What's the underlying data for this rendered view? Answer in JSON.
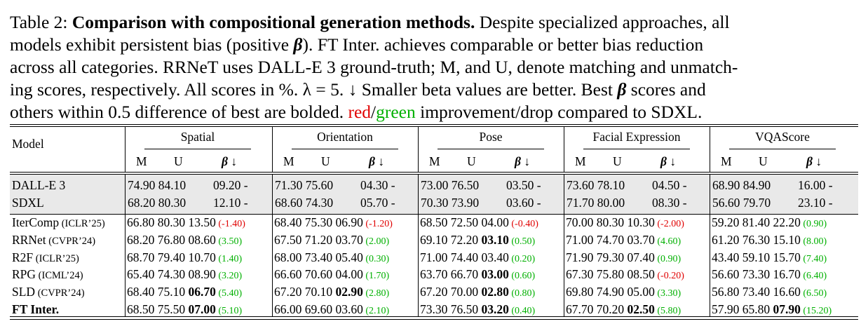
{
  "caption": {
    "label": "Table 2:",
    "title": "Comparison with compositional generation methods.",
    "line1_rest": "Despite specialized approaches, all",
    "line2": "models exhibit persistent bias (positive ",
    "line2_beta": "β",
    "line2_rest": "). FT Inter. achieves comparable or better bias reduction",
    "line3": "across all categories. RRNeT uses DALL-E 3 ground-truth; M, and U, denote matching and unmatch-",
    "line4": "ing scores, respectively. All scores in %. λ = 5. ↓ Smaller beta values are better. Best ",
    "line4_beta": "β",
    "line4_rest": " scores and",
    "line5": "others within 0.5 difference of best are bolded. ",
    "red_word": "red",
    "slash": "/",
    "green_word": "green",
    "line5_rest": " improvement/drop compared to SDXL."
  },
  "header": {
    "model_label": "Model",
    "groups": [
      "Spatial",
      "Orientation",
      "Pose",
      "Facial Expression",
      "VQAScore"
    ],
    "sub_m": "M",
    "sub_u": "U",
    "sub_beta": "β",
    "sub_arrow": "↓"
  },
  "baselines": [
    {
      "model": "DALL-E 3",
      "venue": "",
      "cells": [
        "74.90 84.10",
        "09.20 -",
        "71.30 75.60",
        "04.30 -",
        "73.00 76.50",
        "03.50 -",
        "73.60 78.10",
        "04.50 -",
        "68.90 84.90",
        "16.00 -"
      ]
    },
    {
      "model": "SDXL",
      "venue": "",
      "cells": [
        "68.20 80.30",
        "12.10 -",
        "68.60 74.30",
        "05.70 -",
        "70.30 73.90",
        "03.60 -",
        "71.70 80.00",
        "08.30 -",
        "56.60 79.70",
        "23.10 -"
      ]
    }
  ],
  "rows": [
    {
      "model": "IterComp",
      "venue": "(ICLR’25)",
      "groups": [
        {
          "mu": "66.80 80.30",
          "beta": "13.50",
          "bold": false,
          "delta": "(-1.40)",
          "dir": "red"
        },
        {
          "mu": "68.40 75.30",
          "beta": "06.90",
          "bold": false,
          "delta": "(-1.20)",
          "dir": "red"
        },
        {
          "mu": "68.50 72.50",
          "beta": "04.00",
          "bold": false,
          "delta": "(-0.40)",
          "dir": "red"
        },
        {
          "mu": "70.00 80.30",
          "beta": "10.30",
          "bold": false,
          "delta": "(-2.00)",
          "dir": "red"
        },
        {
          "mu": "59.20 81.40",
          "beta": "22.20",
          "bold": false,
          "delta": "(0.90)",
          "dir": "green"
        }
      ]
    },
    {
      "model": "RRNet",
      "venue": "(CVPR’24)",
      "groups": [
        {
          "mu": "68.20 76.80",
          "beta": "08.60",
          "bold": false,
          "delta": "(3.50)",
          "dir": "green"
        },
        {
          "mu": "67.50 71.20",
          "beta": "03.70",
          "bold": false,
          "delta": "(2.00)",
          "dir": "green"
        },
        {
          "mu": "69.10 72.20",
          "beta": "03.10",
          "bold": true,
          "delta": "(0.50)",
          "dir": "green"
        },
        {
          "mu": "71.00 74.70",
          "beta": "03.70",
          "bold": false,
          "delta": "(4.60)",
          "dir": "green"
        },
        {
          "mu": "61.20 76.30",
          "beta": "15.10",
          "bold": false,
          "delta": "(8.00)",
          "dir": "green"
        }
      ]
    },
    {
      "model": "R2F",
      "venue": "(ICLR’25)",
      "groups": [
        {
          "mu": "68.70 79.40",
          "beta": "10.70",
          "bold": false,
          "delta": "(1.40)",
          "dir": "green"
        },
        {
          "mu": "68.00 73.40",
          "beta": "05.40",
          "bold": false,
          "delta": "(0.30)",
          "dir": "green"
        },
        {
          "mu": "71.00 74.40",
          "beta": "03.40",
          "bold": false,
          "delta": "(0.20)",
          "dir": "green"
        },
        {
          "mu": "71.90 79.30",
          "beta": "07.40",
          "bold": false,
          "delta": "(0.90)",
          "dir": "green"
        },
        {
          "mu": "43.40 59.10",
          "beta": "15.70",
          "bold": false,
          "delta": "(7.40)",
          "dir": "green"
        }
      ]
    },
    {
      "model": "RPG",
      "venue": "(ICML’24)",
      "groups": [
        {
          "mu": "65.40 74.30",
          "beta": "08.90",
          "bold": false,
          "delta": "(3.20)",
          "dir": "green"
        },
        {
          "mu": "66.60 70.60",
          "beta": "04.00",
          "bold": false,
          "delta": "(1.70)",
          "dir": "green"
        },
        {
          "mu": "63.70 66.70",
          "beta": "03.00",
          "bold": true,
          "delta": "(0.60)",
          "dir": "green"
        },
        {
          "mu": "67.30 75.80",
          "beta": "08.50",
          "bold": false,
          "delta": "(-0.20)",
          "dir": "red"
        },
        {
          "mu": "56.60 73.30",
          "beta": "16.70",
          "bold": false,
          "delta": "(6.40)",
          "dir": "green"
        }
      ]
    },
    {
      "model": "SLD",
      "venue": "(CVPR’24)",
      "groups": [
        {
          "mu": "68.40 75.10",
          "beta": "06.70",
          "bold": true,
          "delta": "(5.40)",
          "dir": "green"
        },
        {
          "mu": "67.20 70.10",
          "beta": "02.90",
          "bold": true,
          "delta": "(2.80)",
          "dir": "green"
        },
        {
          "mu": "67.20 70.00",
          "beta": "02.80",
          "bold": true,
          "delta": "(0.80)",
          "dir": "green"
        },
        {
          "mu": "69.80 74.90",
          "beta": "05.00",
          "bold": false,
          "delta": "(3.30)",
          "dir": "green"
        },
        {
          "mu": "56.80 73.40",
          "beta": "16.60",
          "bold": false,
          "delta": "(6.50)",
          "dir": "green"
        }
      ]
    },
    {
      "model": "FT Inter.",
      "venue": "",
      "model_bold": true,
      "groups": [
        {
          "mu": "68.50 75.50",
          "beta": "07.00",
          "bold": true,
          "delta": "(5.10)",
          "dir": "green"
        },
        {
          "mu": "66.00 69.60",
          "beta": "03.60",
          "bold": false,
          "delta": "(2.10)",
          "dir": "green"
        },
        {
          "mu": "73.30 76.50",
          "beta": "03.20",
          "bold": true,
          "delta": "(0.40)",
          "dir": "green"
        },
        {
          "mu": "67.70 70.20",
          "beta": "02.50",
          "bold": true,
          "delta": "(5.80)",
          "dir": "green"
        },
        {
          "mu": "57.90 65.80",
          "beta": "07.90",
          "bold": true,
          "delta": "(15.20)",
          "dir": "green"
        }
      ]
    }
  ],
  "colors": {
    "red": "#e00000",
    "green": "#00b000",
    "shade": "#e9e9e9"
  }
}
